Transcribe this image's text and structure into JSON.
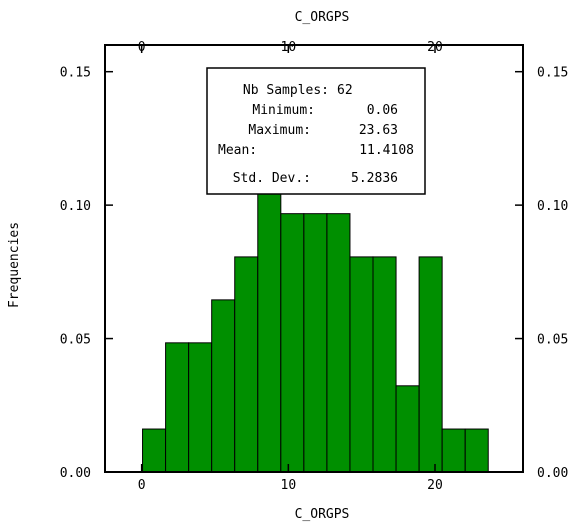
{
  "chart_data": {
    "type": "bar",
    "title": "C_ORGPS",
    "xlabel": "C_ORGPS",
    "ylabel": "Frequencies",
    "xlim": [
      -2.5,
      26
    ],
    "ylim": [
      0,
      0.16
    ],
    "xticks": [
      0,
      10,
      20
    ],
    "yticks": [
      0.0,
      0.05,
      0.1,
      0.15
    ],
    "ytick_labels": [
      "0.00",
      "0.05",
      "0.10",
      "0.15"
    ],
    "bin_edges": [
      0.06,
      1.631,
      3.203,
      4.774,
      6.345,
      7.917,
      9.488,
      11.059,
      12.631,
      14.202,
      15.773,
      17.345,
      18.916,
      20.487,
      22.059,
      23.63
    ],
    "values": [
      0.0161,
      0.0484,
      0.0484,
      0.0645,
      0.0806,
      0.1129,
      0.0968,
      0.0968,
      0.0968,
      0.0806,
      0.0806,
      0.0323,
      0.0806,
      0.0161,
      0.0161
    ],
    "bar_color": "#008f00",
    "grid": false,
    "stats_box": {
      "rows": [
        {
          "label": "Nb Samples:",
          "value": "62"
        },
        {
          "label": "Minimum:",
          "value": "0.06"
        },
        {
          "label": "Maximum:",
          "value": "23.63"
        },
        {
          "label": "Mean:",
          "value": "11.4108"
        },
        {
          "label": "Std. Dev.:",
          "value": "5.2836"
        }
      ]
    }
  }
}
